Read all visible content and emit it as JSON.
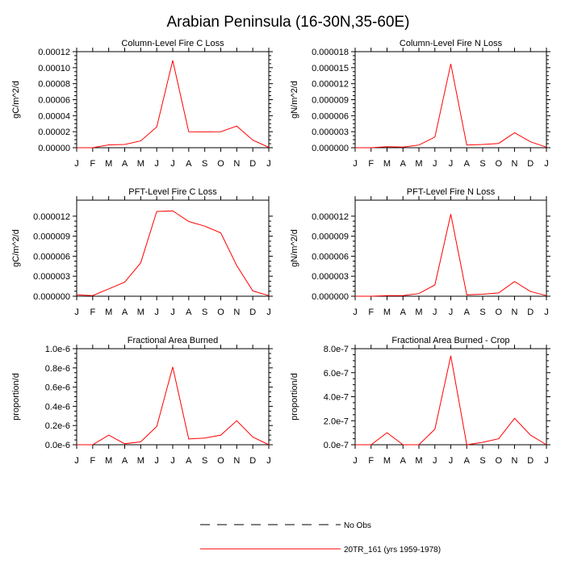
{
  "page_title": "Arabian Peninsula (16-30N,35-60E)",
  "colors": {
    "series": "#ff0000",
    "axis": "#000000",
    "no_obs": "#000000"
  },
  "legend": {
    "no_obs_label": "No Obs",
    "model_label": "20TR_161 (yrs 1959-1978)"
  },
  "chart_data": [
    {
      "type": "line",
      "title": "Column-Level Fire C Loss",
      "ylabel": "gC/m^2/d",
      "xlabel": "",
      "categories": [
        "J",
        "F",
        "M",
        "A",
        "M",
        "J",
        "J",
        "A",
        "S",
        "O",
        "N",
        "D",
        "J"
      ],
      "ylim": [
        0,
        0.00012
      ],
      "yticks": [
        "0.00000",
        "0.00002",
        "0.00004",
        "0.00006",
        "0.00008",
        "0.00010",
        "0.00012"
      ],
      "series": [
        {
          "name": "20TR_161 (yrs 1959-1978)",
          "values": [
            0.0,
            0.0,
            3.5e-06,
            4e-06,
            8.5e-06,
            2.6e-05,
            0.000109,
            2e-05,
            1.98e-05,
            2e-05,
            2.7e-05,
            9.5e-06,
            5e-07
          ]
        }
      ]
    },
    {
      "type": "line",
      "title": "Column-Level Fire N Loss",
      "ylabel": "gN/m^2/d",
      "xlabel": "",
      "categories": [
        "J",
        "F",
        "M",
        "A",
        "M",
        "J",
        "J",
        "A",
        "S",
        "O",
        "N",
        "D",
        "J"
      ],
      "ylim": [
        0,
        1.8e-05
      ],
      "yticks": [
        "0.000000",
        "0.000003",
        "0.000006",
        "0.000009",
        "0.000012",
        "0.000015",
        "0.000018"
      ],
      "series": [
        {
          "name": "20TR_161 (yrs 1959-1978)",
          "values": [
            0.0,
            0.0,
            2e-07,
            1e-07,
            5e-07,
            2e-06,
            1.57e-05,
            5e-07,
            6e-07,
            8e-07,
            2.8e-06,
            1.1e-06,
            1e-07
          ]
        }
      ]
    },
    {
      "type": "line",
      "title": "PFT-Level Fire C Loss",
      "ylabel": "gC/m^2/d",
      "xlabel": "",
      "categories": [
        "J",
        "F",
        "M",
        "A",
        "M",
        "J",
        "J",
        "A",
        "S",
        "O",
        "N",
        "D",
        "J"
      ],
      "ylim": [
        0,
        1.44e-05
      ],
      "yticks": [
        "0.000000",
        "0.000003",
        "0.000006",
        "0.000009",
        "0.000012"
      ],
      "ytick_values": [
        0,
        3e-06,
        6e-06,
        9e-06,
        1.2e-05
      ],
      "series": [
        {
          "name": "20TR_161 (yrs 1959-1978)",
          "values": [
            2e-07,
            1e-07,
            1.1e-06,
            2.1e-06,
            5e-06,
            1.27e-05,
            1.28e-05,
            1.12e-05,
            1.05e-05,
            9.5e-06,
            4.6e-06,
            8e-07,
            1e-07
          ]
        }
      ]
    },
    {
      "type": "line",
      "title": "PFT-Level Fire N Loss",
      "ylabel": "gN/m^2/d",
      "xlabel": "",
      "categories": [
        "J",
        "F",
        "M",
        "A",
        "M",
        "J",
        "J",
        "A",
        "S",
        "O",
        "N",
        "D",
        "J"
      ],
      "ylim": [
        0,
        1.44e-05
      ],
      "yticks": [
        "0.000000",
        "0.000003",
        "0.000006",
        "0.000009",
        "0.000012"
      ],
      "ytick_values": [
        0,
        3e-06,
        6e-06,
        9e-06,
        1.2e-05
      ],
      "series": [
        {
          "name": "20TR_161 (yrs 1959-1978)",
          "values": [
            0.0,
            0.0,
            1e-07,
            1e-07,
            4e-07,
            1.7e-06,
            1.23e-05,
            2e-07,
            3e-07,
            5e-07,
            2.2e-06,
            7e-07,
            1e-07
          ]
        }
      ]
    },
    {
      "type": "line",
      "title": "Fractional Area Burned",
      "ylabel": "proportion/d",
      "xlabel": "",
      "categories": [
        "J",
        "F",
        "M",
        "A",
        "M",
        "J",
        "J",
        "A",
        "S",
        "O",
        "N",
        "D",
        "J"
      ],
      "ylim": [
        0,
        1e-06
      ],
      "yticks": [
        "0.0e-6",
        "0.2e-6",
        "0.4e-6",
        "0.6e-6",
        "0.8e-6",
        "1.0e-6"
      ],
      "series": [
        {
          "name": "20TR_161 (yrs 1959-1978)",
          "values": [
            0.0,
            0.0,
            1e-07,
            1e-08,
            3e-08,
            1.9e-07,
            8.1e-07,
            6e-08,
            7e-08,
            1e-07,
            2.5e-07,
            8e-08,
            0.0
          ]
        }
      ]
    },
    {
      "type": "line",
      "title": "Fractional Area Burned - Crop",
      "ylabel": "proportion/d",
      "xlabel": "",
      "categories": [
        "J",
        "F",
        "M",
        "A",
        "M",
        "J",
        "J",
        "A",
        "S",
        "O",
        "N",
        "D",
        "J"
      ],
      "ylim": [
        0,
        8e-07
      ],
      "yticks": [
        "0.0e-7",
        "2.0e-7",
        "4.0e-7",
        "6.0e-7",
        "8.0e-7"
      ],
      "series": [
        {
          "name": "20TR_161 (yrs 1959-1978)",
          "values": [
            0.0,
            0.0,
            1e-07,
            0.0,
            0.0,
            1.3e-07,
            7.4e-07,
            0.0,
            2e-08,
            5e-08,
            2.2e-07,
            8e-08,
            0.0
          ]
        }
      ]
    }
  ]
}
